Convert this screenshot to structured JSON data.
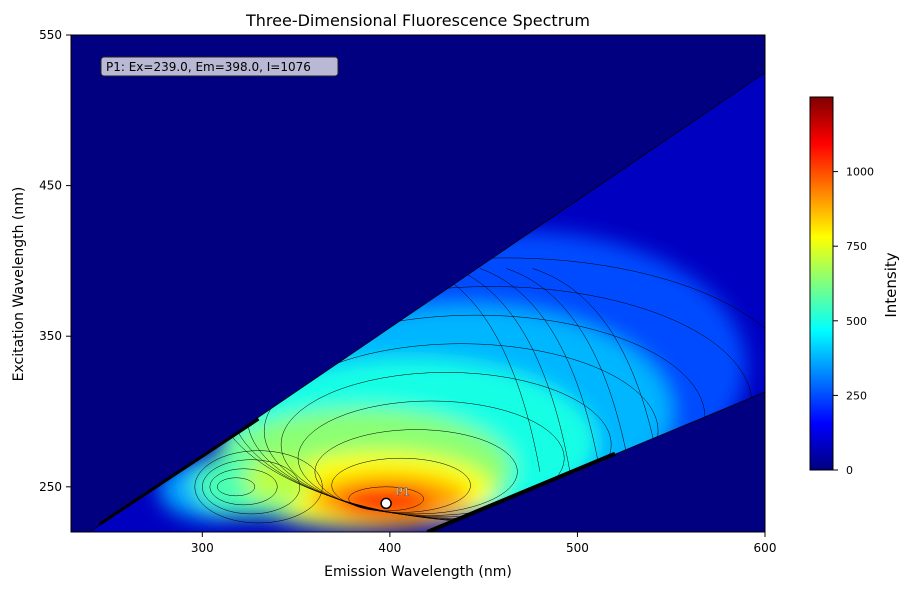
{
  "chart_data": {
    "type": "heatmap",
    "title": "Three-Dimensional Fluorescence Spectrum",
    "xlabel": "Emission Wavelength (nm)",
    "ylabel": "Excitation Wavelength (nm)",
    "xlim": [
      230,
      600
    ],
    "ylim": [
      220,
      550
    ],
    "xticks": [
      "300",
      "400",
      "500",
      "600"
    ],
    "yticks": [
      "250",
      "350",
      "450",
      "550"
    ],
    "colorbar": {
      "label": "Intensity",
      "range": [
        0,
        1250
      ],
      "ticks": [
        "0",
        "250",
        "500",
        "750",
        "1000"
      ],
      "colormap": [
        "#00007f",
        "#0000ff",
        "#007fff",
        "#00ffff",
        "#7fff7f",
        "#ffff00",
        "#ff7f00",
        "#ff0000",
        "#7f0000"
      ]
    },
    "background_color": "#000080",
    "peaks": [
      {
        "label": "P1",
        "ex": 239.0,
        "em": 398.0,
        "intensity": 1076
      }
    ],
    "annotation": "P1: Ex=239.0, Em=398.0, I=1076",
    "grid": false
  }
}
